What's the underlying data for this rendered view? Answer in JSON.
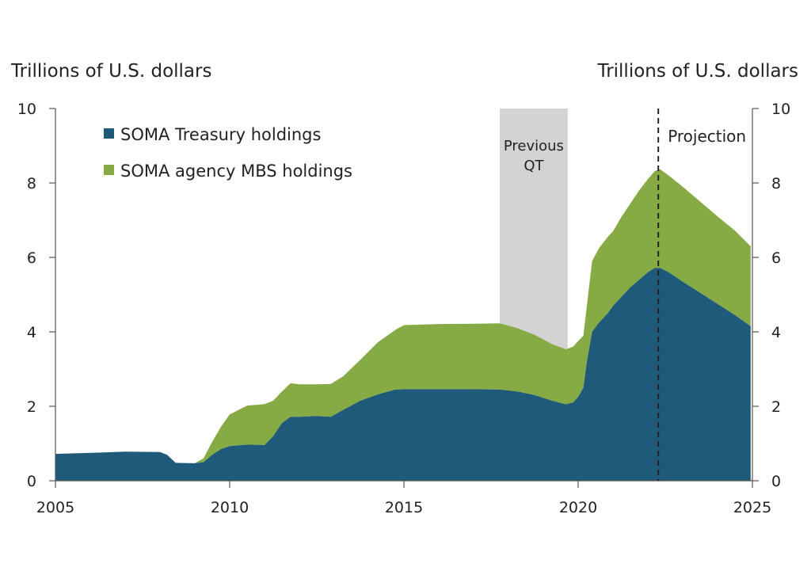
{
  "chart_data": {
    "type": "area",
    "stacked": true,
    "ylabel_left": "Trillions of U.S. dollars",
    "ylabel_right": "Trillions of U.S. dollars",
    "xlim": [
      2005,
      2025
    ],
    "ylim": [
      0,
      10
    ],
    "xticks": [
      "2005",
      "2010",
      "2015",
      "2020",
      "2025"
    ],
    "yticks": [
      "0",
      "2",
      "4",
      "6",
      "8",
      "10"
    ],
    "grid": false,
    "legend_position": "top-left",
    "shaded_region": {
      "label_line1": "Previous",
      "label_line2": "QT",
      "start": 2017.75,
      "end": 2019.7,
      "color": "#d3d3d3"
    },
    "projection": {
      "label": "Projection",
      "start": 2022.3
    },
    "x": [
      2005.0,
      2006.0,
      2007.0,
      2008.0,
      2008.2,
      2008.45,
      2009.0,
      2009.25,
      2009.5,
      2009.75,
      2010.0,
      2010.5,
      2011.0,
      2011.25,
      2011.5,
      2011.75,
      2012.0,
      2012.5,
      2012.9,
      2013.25,
      2013.75,
      2014.25,
      2014.75,
      2015.0,
      2016.0,
      2017.0,
      2017.75,
      2018.25,
      2018.75,
      2019.25,
      2019.65,
      2019.85,
      2020.0,
      2020.15,
      2020.25,
      2020.4,
      2020.6,
      2020.85,
      2021.0,
      2021.25,
      2021.5,
      2021.75,
      2022.0,
      2022.2,
      2022.35,
      2022.6,
      2023.0,
      2023.5,
      2024.0,
      2024.5,
      2024.95
    ],
    "series": [
      {
        "name": "SOMA Treasury holdings",
        "color": "#1f5a7a",
        "values": [
          0.72,
          0.75,
          0.78,
          0.77,
          0.7,
          0.48,
          0.47,
          0.5,
          0.7,
          0.85,
          0.93,
          0.97,
          0.96,
          1.2,
          1.55,
          1.72,
          1.72,
          1.74,
          1.72,
          1.9,
          2.15,
          2.32,
          2.45,
          2.46,
          2.46,
          2.46,
          2.45,
          2.4,
          2.3,
          2.15,
          2.05,
          2.1,
          2.25,
          2.5,
          3.2,
          4.0,
          4.25,
          4.5,
          4.7,
          4.95,
          5.2,
          5.4,
          5.6,
          5.72,
          5.72,
          5.6,
          5.35,
          5.05,
          4.75,
          4.45,
          4.15
        ]
      },
      {
        "name": "SOMA agency MBS holdings",
        "color": "#86ab45",
        "values": [
          0.0,
          0.0,
          0.0,
          0.0,
          0.0,
          0.0,
          0.0,
          0.1,
          0.35,
          0.6,
          0.85,
          1.05,
          1.1,
          0.95,
          0.85,
          0.9,
          0.87,
          0.85,
          0.88,
          0.9,
          1.1,
          1.4,
          1.6,
          1.72,
          1.75,
          1.76,
          1.78,
          1.7,
          1.62,
          1.52,
          1.48,
          1.5,
          1.5,
          1.4,
          1.5,
          1.9,
          2.0,
          2.05,
          2.0,
          2.15,
          2.25,
          2.4,
          2.5,
          2.6,
          2.65,
          2.6,
          2.55,
          2.45,
          2.35,
          2.27,
          2.15
        ]
      }
    ]
  }
}
